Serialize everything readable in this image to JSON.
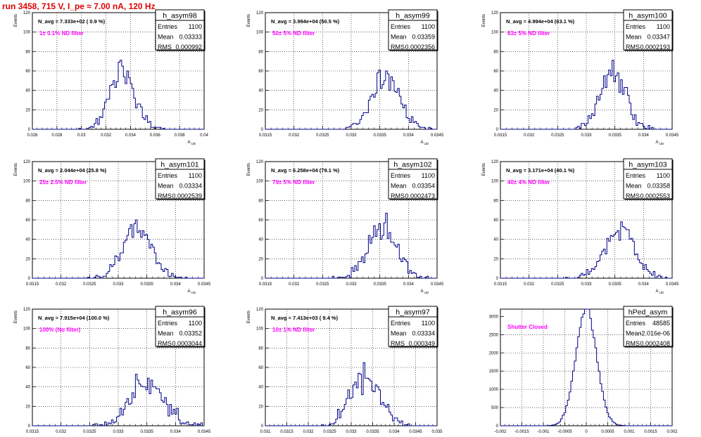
{
  "run_title": "run 3458,   715 V, I_pe ≈ 7.00 nA, 120 Hz",
  "chart_data": [
    {
      "type": "histogram",
      "hist_name": "h_asym98",
      "navg_text": "N_avg = 7.333e+02 ( 0.9 %)",
      "filter_text": "1± 0.1% ND filter",
      "entries": "1100",
      "mean": "0.03333",
      "rms": "0.000992",
      "xlabel": "A_UD",
      "ylabel": "Events",
      "xlim": [
        0.026,
        0.04
      ],
      "ylim": [
        0,
        120
      ],
      "mean_val": 0.03333,
      "rms_val": 0.000992,
      "n": 1100,
      "nbins": 100,
      "seed": 11,
      "xticks": [
        0.026,
        0.028,
        0.03,
        0.032,
        0.034,
        0.036,
        0.038,
        0.04
      ],
      "xtick_labels": [
        "0.026",
        "0.028",
        "0.03",
        "0.032",
        "0.034",
        "0.036",
        "0.038",
        "0.04"
      ],
      "yticks": [
        0,
        20,
        40,
        60,
        80,
        100,
        120
      ],
      "ytick_labels": [
        "0",
        "20",
        "40",
        "60",
        "80",
        "100",
        "120"
      ]
    },
    {
      "type": "histogram",
      "hist_name": "h_asym99",
      "navg_text": "N_avg = 3.994e+04 (50.5 %)",
      "filter_text": "50± 5% ND filter",
      "entries": "1100",
      "mean": "0.03359",
      "rms": "0.0002356",
      "xlabel": "A_UD",
      "ylabel": "Events",
      "xlim": [
        0.0315,
        0.0345
      ],
      "ylim": [
        0,
        120
      ],
      "mean_val": 0.03359,
      "rms_val": 0.0002356,
      "n": 1100,
      "nbins": 100,
      "seed": 23,
      "xticks": [
        0.0315,
        0.032,
        0.0325,
        0.033,
        0.0335,
        0.034,
        0.0345
      ],
      "xtick_labels": [
        "0.0315",
        "0.032",
        "0.0325",
        "0.033",
        "0.0335",
        "0.034",
        "0.0345"
      ],
      "yticks": [
        0,
        20,
        40,
        60,
        80,
        100,
        120
      ],
      "ytick_labels": [
        "0",
        "20",
        "40",
        "60",
        "80",
        "100",
        "120"
      ]
    },
    {
      "type": "histogram",
      "hist_name": "h_asym100",
      "navg_text": "N_avg = 4.994e+04 (63.1 %)",
      "filter_text": "63± 5% ND filter",
      "entries": "1100",
      "mean": "0.03347",
      "rms": "0.0002193",
      "xlabel": "A_UD",
      "ylabel": "Events",
      "xlim": [
        0.0315,
        0.0345
      ],
      "ylim": [
        0,
        120
      ],
      "mean_val": 0.03347,
      "rms_val": 0.0002193,
      "n": 1100,
      "nbins": 100,
      "seed": 37,
      "xticks": [
        0.0315,
        0.032,
        0.0325,
        0.033,
        0.0335,
        0.034,
        0.0345
      ],
      "xtick_labels": [
        "0.0315",
        "0.032",
        "0.0325",
        "0.033",
        "0.0335",
        "0.034",
        "0.0345"
      ],
      "yticks": [
        0,
        20,
        40,
        60,
        80,
        100,
        120
      ],
      "ytick_labels": [
        "0",
        "20",
        "40",
        "60",
        "80",
        "100",
        "120"
      ]
    },
    {
      "type": "histogram",
      "hist_name": "h_asym101",
      "navg_text": "N_avg = 2.044e+04 (25.8 %)",
      "filter_text": "25± 2.5% ND filter",
      "entries": "1100",
      "mean": "0.03334",
      "rms": "0.0002539",
      "xlabel": "A_UD",
      "ylabel": "Events",
      "xlim": [
        0.0315,
        0.0345
      ],
      "ylim": [
        0,
        120
      ],
      "mean_val": 0.03334,
      "rms_val": 0.0002539,
      "n": 1100,
      "nbins": 100,
      "seed": 41,
      "xticks": [
        0.0315,
        0.032,
        0.0325,
        0.033,
        0.0335,
        0.034,
        0.0345
      ],
      "xtick_labels": [
        "0.0315",
        "0.032",
        "0.0325",
        "0.033",
        "0.0335",
        "0.034",
        "0.0345"
      ],
      "yticks": [
        0,
        20,
        40,
        60,
        80,
        100,
        120
      ],
      "ytick_labels": [
        "0",
        "20",
        "40",
        "60",
        "80",
        "100",
        "120"
      ]
    },
    {
      "type": "histogram",
      "hist_name": "h_asym102",
      "navg_text": "N_avg = 6.258e+04 (79.1 %)",
      "filter_text": "79± 5% ND filter",
      "entries": "1100",
      "mean": "0.03354",
      "rms": "0.0002473",
      "xlabel": "A_UD",
      "ylabel": "Events",
      "xlim": [
        0.0315,
        0.0345
      ],
      "ylim": [
        0,
        120
      ],
      "mean_val": 0.03354,
      "rms_val": 0.0002473,
      "n": 1100,
      "nbins": 100,
      "seed": 53,
      "xticks": [
        0.0315,
        0.032,
        0.0325,
        0.033,
        0.0335,
        0.034,
        0.0345
      ],
      "xtick_labels": [
        "0.0315",
        "0.032",
        "0.0325",
        "0.033",
        "0.0335",
        "0.034",
        "0.0345"
      ],
      "yticks": [
        0,
        20,
        40,
        60,
        80,
        100,
        120
      ],
      "ytick_labels": [
        "0",
        "20",
        "40",
        "60",
        "80",
        "100",
        "120"
      ]
    },
    {
      "type": "histogram",
      "hist_name": "h_asym103",
      "navg_text": "N_avg = 3.171e+04 (40.1 %)",
      "filter_text": "40± 4% ND filter",
      "entries": "1100",
      "mean": "0.03358",
      "rms": "0.0002553",
      "xlabel": "A_UD",
      "ylabel": "Events",
      "xlim": [
        0.0315,
        0.0345
      ],
      "ylim": [
        0,
        120
      ],
      "mean_val": 0.03358,
      "rms_val": 0.0002553,
      "n": 1100,
      "nbins": 100,
      "seed": 67,
      "xticks": [
        0.0315,
        0.032,
        0.0325,
        0.033,
        0.0335,
        0.034,
        0.0345
      ],
      "xtick_labels": [
        "0.0315",
        "0.032",
        "0.0325",
        "0.033",
        "0.0335",
        "0.034",
        "0.0345"
      ],
      "yticks": [
        0,
        20,
        40,
        60,
        80,
        100,
        120
      ],
      "ytick_labels": [
        "0",
        "20",
        "40",
        "60",
        "80",
        "100",
        "120"
      ]
    },
    {
      "type": "histogram",
      "hist_name": "h_asym96",
      "navg_text": "N_avg = 7.915e+04 (100.0 %)",
      "filter_text": "100% (No filter)",
      "entries": "1100",
      "mean": "0.03352",
      "rms": "0.0003044",
      "xlabel": "A_UD",
      "ylabel": "Events",
      "xlim": [
        0.0315,
        0.0345
      ],
      "ylim": [
        0,
        120
      ],
      "mean_val": 0.03352,
      "rms_val": 0.0003044,
      "n": 1100,
      "nbins": 100,
      "seed": 71,
      "xticks": [
        0.0315,
        0.032,
        0.0325,
        0.033,
        0.0335,
        0.034,
        0.0345
      ],
      "xtick_labels": [
        "0.0315",
        "0.032",
        "0.0325",
        "0.033",
        "0.0335",
        "0.034",
        "0.0345"
      ],
      "yticks": [
        0,
        20,
        40,
        60,
        80,
        100,
        120
      ],
      "ytick_labels": [
        "0",
        "20",
        "40",
        "60",
        "80",
        "100",
        "120"
      ]
    },
    {
      "type": "histogram",
      "hist_name": "h_asym97",
      "navg_text": "N_avg = 7.413e+03 ( 9.4 %)",
      "filter_text": "10± 1% ND filter",
      "entries": "1100",
      "mean": "0.03334",
      "rms": "0.000349",
      "xlabel": "A_UD",
      "ylabel": "Events",
      "xlim": [
        0.031,
        0.035
      ],
      "ylim": [
        0,
        120
      ],
      "mean_val": 0.03334,
      "rms_val": 0.000349,
      "n": 1100,
      "nbins": 100,
      "seed": 83,
      "xticks": [
        0.031,
        0.0315,
        0.032,
        0.0325,
        0.033,
        0.0335,
        0.034,
        0.0345,
        0.035
      ],
      "xtick_labels": [
        "0.031",
        "0.0315",
        "0.032",
        "0.0325",
        "0.033",
        "0.0335",
        "0.034",
        "0.0345",
        "0.035"
      ],
      "yticks": [
        0,
        20,
        40,
        60,
        80,
        100,
        120
      ],
      "ytick_labels": [
        "0",
        "20",
        "40",
        "60",
        "80",
        "100",
        "120"
      ]
    },
    {
      "type": "histogram",
      "hist_name": "hPed_asym",
      "navg_text": "",
      "filter_text": "Shutter Closed",
      "entries": "48585",
      "mean": "-2.016e-06",
      "rms": "0.0002408",
      "xlabel": "",
      "ylabel": "",
      "xlim": [
        -0.002,
        0.002
      ],
      "ylim": [
        0,
        3200
      ],
      "mean_val": -2.016e-06,
      "rms_val": 0.0002408,
      "n": 48585,
      "nbins": 100,
      "seed": 97,
      "xticks": [
        -0.002,
        -0.0015,
        -0.001,
        -0.0005,
        0,
        0.0005,
        0.001,
        0.0015,
        0.002
      ],
      "xtick_labels": [
        "-0.002",
        "-0.0015",
        "-0.001",
        "-0.0005",
        "0",
        "0.0005",
        "0.001",
        "0.0015",
        "0.002"
      ],
      "yticks": [
        0,
        500,
        1000,
        1500,
        2000,
        2500,
        3000
      ],
      "ytick_labels": [
        "0",
        "500",
        "1000",
        "1500",
        "2000",
        "2500",
        "3000"
      ]
    }
  ],
  "colors": {
    "hist_line": "#000088",
    "filter_text": "#ff00ff",
    "title": "#e00000",
    "grid": "#000000"
  }
}
